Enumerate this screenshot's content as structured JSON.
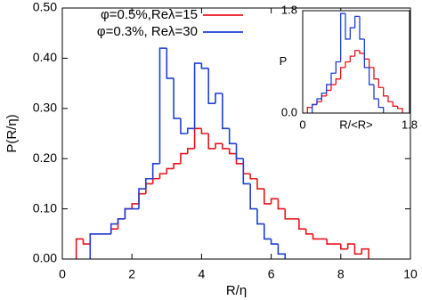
{
  "chart_data": [
    {
      "type": "histogram",
      "xlabel": "R/η",
      "ylabel": "P(R/η)",
      "xlim": [
        0,
        10
      ],
      "ylim": [
        0,
        0.5
      ],
      "xticks": [
        0,
        2,
        4,
        6,
        8,
        10
      ],
      "yticks": [
        {
          "value": 0,
          "label": "0.00"
        },
        {
          "value": 0.1,
          "label": "0.10"
        },
        {
          "value": 0.2,
          "label": "0.20"
        },
        {
          "value": 0.3,
          "label": "0.30"
        },
        {
          "value": 0.4,
          "label": "0.40"
        },
        {
          "value": 0.5,
          "label": "0.50"
        }
      ],
      "legend": "top-left",
      "series": [
        {
          "name": "φ=0.5%,Reλ=15",
          "color": "#e8141c",
          "bins": [
            0.4,
            0.6,
            0.8,
            1.0,
            1.2,
            1.4,
            1.6,
            1.8,
            2.0,
            2.2,
            2.4,
            2.6,
            2.8,
            3.0,
            3.2,
            3.4,
            3.6,
            3.8,
            4.0,
            4.2,
            4.4,
            4.6,
            4.8,
            5.0,
            5.2,
            5.4,
            5.6,
            5.8,
            6.0,
            6.2,
            6.4,
            6.6,
            6.8,
            7.0,
            7.2,
            7.4,
            7.6,
            7.8,
            8.0,
            8.2,
            8.4,
            8.6,
            8.8
          ],
          "values": [
            0.04,
            0.03,
            0.05,
            0.05,
            0.05,
            0.06,
            0.08,
            0.1,
            0.11,
            0.13,
            0.15,
            0.16,
            0.17,
            0.18,
            0.19,
            0.21,
            0.22,
            0.26,
            0.25,
            0.22,
            0.23,
            0.22,
            0.21,
            0.19,
            0.17,
            0.16,
            0.14,
            0.11,
            0.12,
            0.1,
            0.08,
            0.08,
            0.06,
            0.05,
            0.04,
            0.04,
            0.03,
            0.03,
            0.02,
            0.03,
            0.01,
            0.02
          ]
        },
        {
          "name": "φ=0.3%, Reλ=30",
          "color": "#1f3fd6",
          "bins": [
            0.8,
            1.0,
            1.2,
            1.4,
            1.6,
            1.8,
            2.0,
            2.2,
            2.4,
            2.6,
            2.8,
            3.0,
            3.2,
            3.4,
            3.6,
            3.8,
            4.0,
            4.2,
            4.4,
            4.6,
            4.8,
            5.0,
            5.2,
            5.4,
            5.6,
            5.8,
            6.0,
            6.2,
            6.4
          ],
          "values": [
            0.05,
            0.05,
            0.05,
            0.07,
            0.08,
            0.1,
            0.1,
            0.14,
            0.16,
            0.19,
            0.42,
            0.36,
            0.28,
            0.25,
            0.26,
            0.39,
            0.38,
            0.31,
            0.33,
            0.26,
            0.23,
            0.2,
            0.15,
            0.1,
            0.07,
            0.04,
            0.03,
            0.01
          ]
        }
      ]
    },
    {
      "type": "histogram",
      "xlabel": "R/<R>",
      "ylabel": "P",
      "xlim": [
        0,
        1.8
      ],
      "ylim": [
        0,
        1.8
      ],
      "xticks": [
        0,
        1.8
      ],
      "yticks": [
        {
          "value": 0,
          "label": "0.0"
        },
        1.8
      ],
      "series": [
        {
          "color": "#e8141c",
          "bins": [
            0.08,
            0.16,
            0.24,
            0.32,
            0.4,
            0.48,
            0.56,
            0.64,
            0.72,
            0.8,
            0.88,
            0.96,
            1.04,
            1.12,
            1.2,
            1.28,
            1.36,
            1.44,
            1.52,
            1.6,
            1.68
          ],
          "values": [
            0.1,
            0.15,
            0.2,
            0.3,
            0.4,
            0.5,
            0.6,
            0.8,
            0.9,
            1.0,
            1.1,
            1.05,
            0.95,
            0.8,
            0.6,
            0.45,
            0.3,
            0.2,
            0.12,
            0.08
          ]
        },
        {
          "color": "#1f3fd6",
          "bins": [
            0.16,
            0.24,
            0.32,
            0.4,
            0.48,
            0.56,
            0.64,
            0.72,
            0.8,
            0.88,
            0.96,
            1.04,
            1.12,
            1.2,
            1.28,
            1.36
          ],
          "values": [
            0.15,
            0.25,
            0.35,
            0.5,
            0.7,
            0.9,
            1.75,
            1.3,
            1.5,
            1.7,
            1.3,
            0.8,
            0.5,
            0.25,
            0.1
          ]
        }
      ]
    }
  ]
}
